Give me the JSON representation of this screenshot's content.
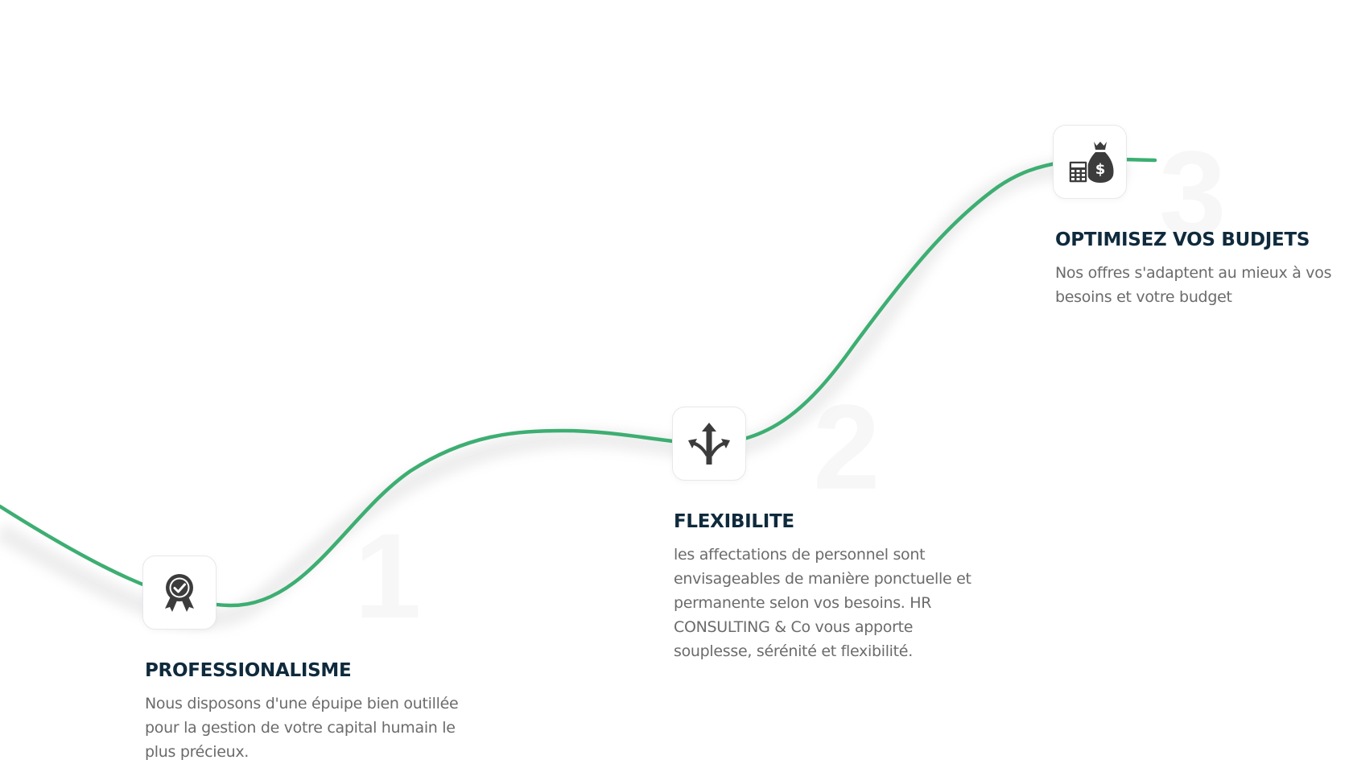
{
  "theme": {
    "curve_color": "#3dae72",
    "title_color": "#0f2a3c",
    "text_color": "#6b6b6b",
    "icon_color": "#3c3c3c"
  },
  "steps": [
    {
      "number": "1",
      "icon": "award-check-icon",
      "title": "PROFESSIONALISME",
      "description": "Nous disposons d'une épuipe bien outillée pour la gestion de votre capital humain le plus précieux."
    },
    {
      "number": "2",
      "icon": "split-arrows-icon",
      "title": "FLEXIBILITE",
      "description": "les affectations de personnel sont envisageables de manière ponctuelle et permanente selon vos besoins. HR CONSULTING & Co vous apporte souplesse, sérénité et flexibilité."
    },
    {
      "number": "3",
      "icon": "money-bag-calculator-icon",
      "title": "OPTIMISEZ VOS BUDJETS",
      "description": "Nos offres s'adaptent au mieux à vos besoins et votre budget"
    }
  ]
}
